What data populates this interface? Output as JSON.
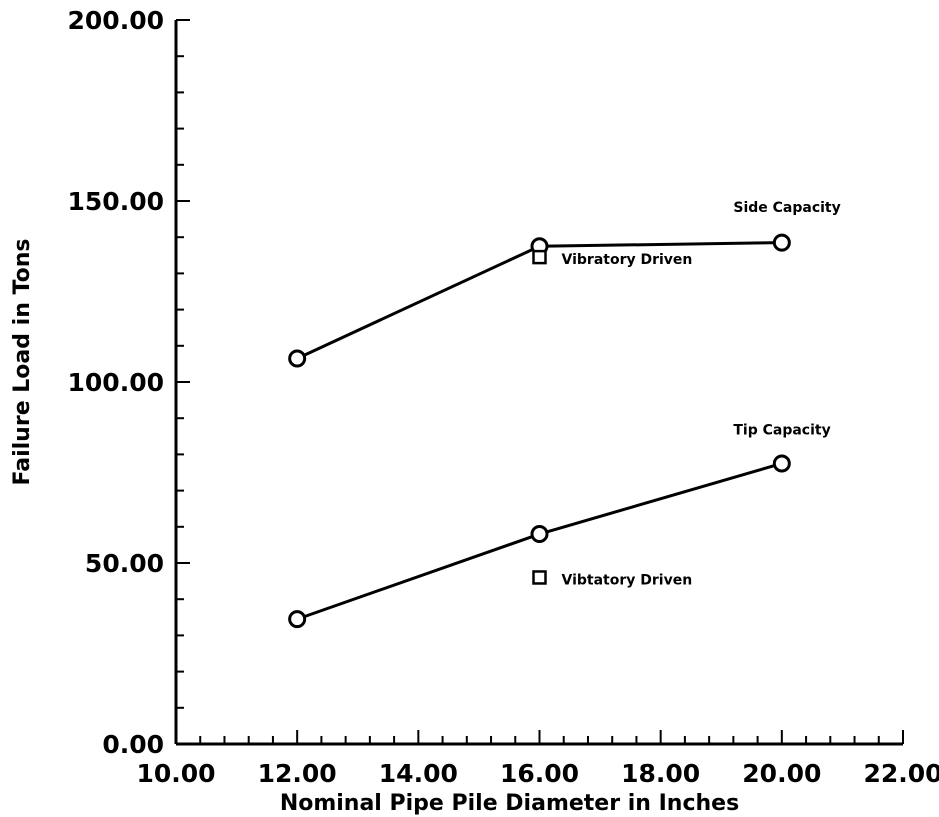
{
  "chart_data": {
    "type": "line",
    "xlabel": "Nominal Pipe Pile Diameter in Inches",
    "ylabel": "Failure Load in Tons",
    "xlim": [
      10,
      22
    ],
    "ylim": [
      0,
      200
    ],
    "x_ticks": [
      "10.00",
      "12.00",
      "14.00",
      "16.00",
      "18.00",
      "20.00",
      "22.00"
    ],
    "y_ticks": [
      "0.00",
      "50.00",
      "100.00",
      "150.00",
      "200.00"
    ],
    "series": [
      {
        "name": "Side Capacity",
        "marker": "circle",
        "points": [
          {
            "x": 12,
            "y": 106.5
          },
          {
            "x": 16,
            "y": 137.5
          },
          {
            "x": 20,
            "y": 138.5
          }
        ]
      },
      {
        "name": "Tip Capacity",
        "marker": "circle",
        "points": [
          {
            "x": 12,
            "y": 34.5
          },
          {
            "x": 16,
            "y": 58
          },
          {
            "x": 20,
            "y": 77.5
          }
        ]
      }
    ],
    "vibratory_points": [
      {
        "label": "Vibratory Driven",
        "x": 16,
        "y": 134.5
      },
      {
        "label": "Vibtatory Driven",
        "x": 16,
        "y": 46
      }
    ],
    "annotations": [
      {
        "text": "Side Capacity",
        "x": 19.2,
        "y": 147
      },
      {
        "text": "Tip Capacity",
        "x": 19.2,
        "y": 85.5
      }
    ],
    "grid": false,
    "legend": "none"
  }
}
